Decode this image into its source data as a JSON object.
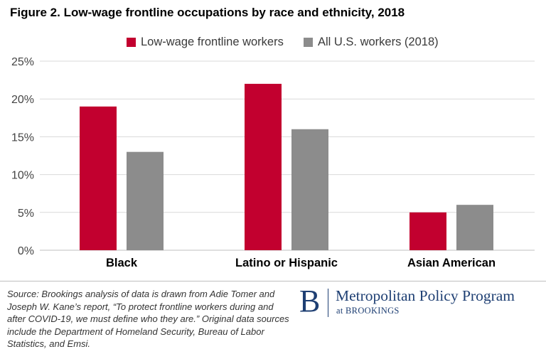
{
  "title": "Figure 2. Low-wage frontline occupations by race and ethnicity, 2018",
  "colors": {
    "series1": "#c2002f",
    "series2": "#8c8c8c",
    "grid": "#d9d9d9",
    "logo": "#1e3f73"
  },
  "chart_data": {
    "type": "bar",
    "categories": [
      "Black",
      "Latino or Hispanic",
      "Asian American"
    ],
    "series": [
      {
        "name": "Low-wage frontline workers",
        "values": [
          19,
          22,
          5
        ],
        "color": "#c2002f"
      },
      {
        "name": "All U.S. workers (2018)",
        "values": [
          13,
          16,
          6
        ],
        "color": "#8c8c8c"
      }
    ],
    "ylim": [
      0,
      25
    ],
    "yticks": [
      0,
      5,
      10,
      15,
      20,
      25
    ],
    "ytick_labels": [
      "0%",
      "5%",
      "10%",
      "15%",
      "20%",
      "25%"
    ],
    "xlabel": "",
    "ylabel": "",
    "grid": true,
    "legend_position": "top"
  },
  "source": "Source: Brookings analysis of data is drawn from Adie Tomer and Joseph W. Kane’s report, “To protect frontline workers during and after COVID-19, we must define who they are.” Original data sources include the Department of Homeland Security, Bureau of Labor Statistics, and Emsi.",
  "logo": {
    "letter": "B",
    "name": "Metropolitan Policy Program",
    "sub": "at BROOKINGS"
  }
}
